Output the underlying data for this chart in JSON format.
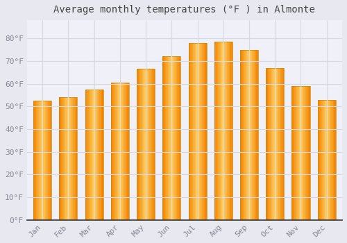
{
  "title": "Average monthly temperatures (°F ) in Almonte",
  "months": [
    "Jan",
    "Feb",
    "Mar",
    "Apr",
    "May",
    "Jun",
    "Jul",
    "Aug",
    "Sep",
    "Oct",
    "Nov",
    "Dec"
  ],
  "values": [
    52.5,
    54.0,
    57.5,
    60.5,
    66.5,
    72.0,
    78.0,
    78.5,
    75.0,
    67.0,
    59.0,
    53.0
  ],
  "bar_color_center": "#FFB733",
  "bar_color_edge": "#F5A623",
  "background_color": "#e8e8f0",
  "plot_bg_color": "#f0f0f8",
  "ylim": [
    0,
    88
  ],
  "yticks": [
    0,
    10,
    20,
    30,
    40,
    50,
    60,
    70,
    80
  ],
  "ytick_labels": [
    "0°F",
    "10°F",
    "20°F",
    "30°F",
    "40°F",
    "50°F",
    "60°F",
    "70°F",
    "80°F"
  ],
  "grid_color": "#d8d8e8",
  "title_fontsize": 10,
  "tick_fontsize": 8,
  "bar_width": 0.7,
  "tick_color": "#888899",
  "spine_color": "#333333"
}
